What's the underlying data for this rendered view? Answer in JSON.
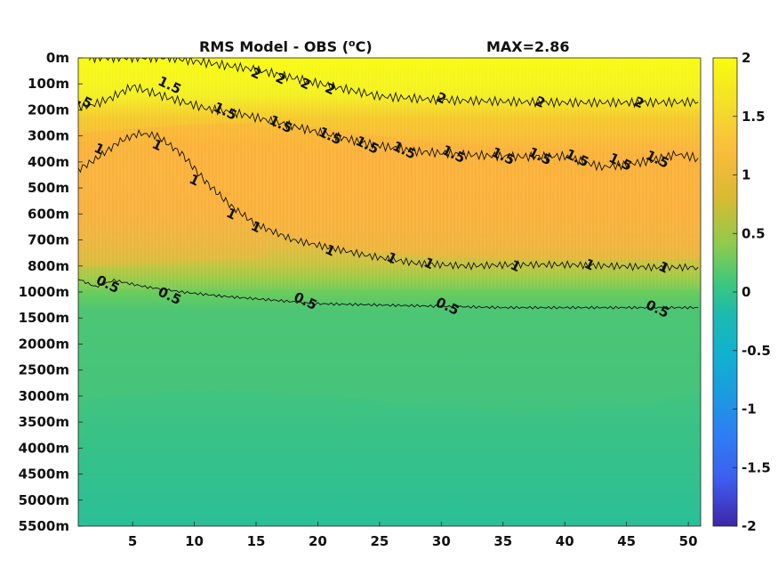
{
  "chart_data": {
    "type": "heatmap",
    "title": "RMS Model - OBS (",
    "title_unit_sup": "o",
    "title_unit": "C)",
    "annotation": "MAX=2.86",
    "x_ticks": [
      5,
      10,
      15,
      20,
      25,
      30,
      35,
      40,
      45,
      50
    ],
    "xlim": [
      0.6,
      51
    ],
    "y_ticks": [
      "0m",
      "100m",
      "200m",
      "300m",
      "400m",
      "500m",
      "600m",
      "700m",
      "800m",
      "1000m",
      "1500m",
      "2000m",
      "2500m",
      "3000m",
      "3500m",
      "4000m",
      "4500m",
      "5000m",
      "5500m"
    ],
    "colorbar": {
      "ticks": [
        2,
        1.5,
        1,
        0.5,
        0,
        -0.5,
        -1,
        -1.5,
        -2
      ],
      "tick_labels": [
        "2",
        "1.5",
        "1",
        "0.5",
        "0",
        "-0.5",
        "-1",
        "-1.5",
        "-2"
      ],
      "range": [
        -2,
        2
      ],
      "colormap": "parula"
    },
    "contours": [
      {
        "level": 2,
        "label": "2",
        "x": [
          1.5,
          8,
          15,
          20,
          25,
          30,
          35,
          40,
          45,
          50.8
        ],
        "y": [
          0,
          0,
          0.45,
          0.98,
          1.48,
          1.62,
          1.68,
          1.72,
          1.72,
          1.7
        ]
      },
      {
        "level": 1.5,
        "label": "1.5",
        "x": [
          0.6,
          1.5,
          3,
          5,
          8,
          11,
          13,
          16,
          20,
          24,
          28,
          32,
          36,
          40,
          43,
          45,
          47,
          49,
          50.8
        ],
        "y": [
          1.85,
          1.85,
          1.6,
          1.1,
          1.55,
          1.95,
          2.08,
          2.4,
          2.85,
          3.3,
          3.6,
          3.72,
          3.8,
          3.78,
          4.2,
          4.1,
          3.95,
          3.7,
          3.85
        ]
      },
      {
        "level": 1,
        "label": "1",
        "x": [
          0.6,
          2,
          4,
          5.5,
          7,
          9,
          11,
          13,
          15,
          18,
          21,
          24,
          28,
          32,
          36,
          40,
          44,
          47,
          50.8
        ],
        "y": [
          4.3,
          3.9,
          3.2,
          2.9,
          3.0,
          3.7,
          4.8,
          5.7,
          6.4,
          7.0,
          7.3,
          7.6,
          7.9,
          8.0,
          7.95,
          7.95,
          8.0,
          8.05,
          8.05
        ]
      },
      {
        "level": 0.5,
        "label": "0.5",
        "x": [
          0.6,
          2,
          3.5,
          6,
          9,
          12,
          16,
          20,
          25,
          30,
          35,
          40,
          45,
          50.8
        ],
        "y": [
          8.5,
          8.8,
          8.55,
          8.8,
          9.0,
          9.15,
          9.3,
          9.45,
          9.5,
          9.55,
          9.6,
          9.6,
          9.6,
          9.6
        ]
      }
    ],
    "contour_labels": [
      {
        "text": "2",
        "x": 15,
        "y": 0.6
      },
      {
        "text": "2",
        "x": 17,
        "y": 0.8
      },
      {
        "text": "2",
        "x": 19,
        "y": 1.0
      },
      {
        "text": "2",
        "x": 21,
        "y": 1.2
      },
      {
        "text": "2",
        "x": 30,
        "y": 1.55
      },
      {
        "text": "2",
        "x": 38,
        "y": 1.7
      },
      {
        "text": "2",
        "x": 46,
        "y": 1.72
      },
      {
        "text": "1.5",
        "x": 0.8,
        "y": 1.6
      },
      {
        "text": "1.5",
        "x": 8,
        "y": 1.05
      },
      {
        "text": "1.5",
        "x": 12.5,
        "y": 2.05
      },
      {
        "text": "1.5",
        "x": 17,
        "y": 2.55
      },
      {
        "text": "1.5",
        "x": 21,
        "y": 3.0
      },
      {
        "text": "1.5",
        "x": 24,
        "y": 3.35
      },
      {
        "text": "1.5",
        "x": 27,
        "y": 3.55
      },
      {
        "text": "1.5",
        "x": 31,
        "y": 3.7
      },
      {
        "text": "1.5",
        "x": 35,
        "y": 3.78
      },
      {
        "text": "1.5",
        "x": 38,
        "y": 3.78
      },
      {
        "text": "1.5",
        "x": 41,
        "y": 3.85
      },
      {
        "text": "1.5",
        "x": 44.5,
        "y": 4.0
      },
      {
        "text": "1.5",
        "x": 47.5,
        "y": 3.9
      },
      {
        "text": "1",
        "x": 2.3,
        "y": 3.5
      },
      {
        "text": "1",
        "x": 7,
        "y": 3.35
      },
      {
        "text": "1",
        "x": 10,
        "y": 4.7
      },
      {
        "text": "1",
        "x": 13,
        "y": 6.0
      },
      {
        "text": "1",
        "x": 15,
        "y": 6.5
      },
      {
        "text": "1",
        "x": 21,
        "y": 7.4
      },
      {
        "text": "1",
        "x": 26,
        "y": 7.7
      },
      {
        "text": "1",
        "x": 29,
        "y": 7.9
      },
      {
        "text": "1",
        "x": 36,
        "y": 8.0
      },
      {
        "text": "1",
        "x": 42,
        "y": 7.95
      },
      {
        "text": "1",
        "x": 48,
        "y": 8.05
      },
      {
        "text": "0.5",
        "x": 3,
        "y": 8.7
      },
      {
        "text": "0.5",
        "x": 8,
        "y": 9.15
      },
      {
        "text": "0.5",
        "x": 19,
        "y": 9.35
      },
      {
        "text": "0.5",
        "x": 30.5,
        "y": 9.55
      },
      {
        "text": "0.5",
        "x": 47.5,
        "y": 9.65
      }
    ]
  }
}
